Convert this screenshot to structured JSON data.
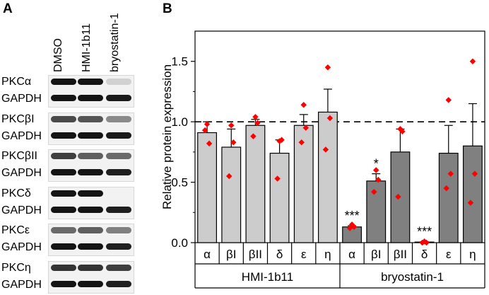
{
  "panel_a": {
    "letter": "A",
    "lanes": [
      "DMSO",
      "HMI-1b11",
      "bryostatin-1"
    ],
    "blots": [
      {
        "target": "PKCα",
        "control": "GAPDH",
        "target_intensity": [
          1.0,
          1.0,
          0.12
        ],
        "control_intensity": [
          1.0,
          1.0,
          0.97
        ]
      },
      {
        "target": "PKCβI",
        "control": "GAPDH",
        "target_intensity": [
          0.75,
          0.7,
          0.45
        ],
        "control_intensity": [
          1.0,
          1.0,
          0.97
        ]
      },
      {
        "target": "PKCβII",
        "control": "GAPDH",
        "target_intensity": [
          0.8,
          0.65,
          0.6
        ],
        "control_intensity": [
          1.0,
          1.0,
          0.95
        ]
      },
      {
        "target": "PKCδ",
        "control": "GAPDH",
        "target_intensity": [
          1.0,
          1.0,
          0.0
        ],
        "control_intensity": [
          1.0,
          1.0,
          0.95
        ]
      },
      {
        "target": "PKCε",
        "control": "GAPDH",
        "target_intensity": [
          0.6,
          0.65,
          0.5
        ],
        "control_intensity": [
          1.0,
          1.0,
          0.95
        ]
      },
      {
        "target": "PKCη",
        "control": "GAPDH",
        "target_intensity": [
          0.85,
          0.85,
          0.8
        ],
        "control_intensity": [
          1.0,
          1.0,
          0.95
        ]
      }
    ]
  },
  "chart_data": {
    "type": "bar",
    "panel_letter": "B",
    "ylabel": "Relative protein expression",
    "ylim": [
      0,
      1.75
    ],
    "yticks": [
      "0.0",
      "0.5",
      "1.0",
      "1.5"
    ],
    "reference_line": 1.0,
    "categories": [
      "α",
      "βI",
      "βII",
      "δ",
      "ε",
      "η",
      "α",
      "βI",
      "βII",
      "δ",
      "ε",
      "η"
    ],
    "groups": [
      {
        "name": "HMI-1b11",
        "start": 0,
        "end": 5,
        "color": "#cccccc"
      },
      {
        "name": "bryostatin-1",
        "start": 6,
        "end": 11,
        "color": "#808080"
      }
    ],
    "values": [
      0.91,
      0.79,
      0.97,
      0.74,
      0.97,
      1.08,
      0.13,
      0.51,
      0.75,
      0.005,
      0.74,
      0.8
    ],
    "errors": [
      0.09,
      0.15,
      0.05,
      0.11,
      0.09,
      0.19,
      0.01,
      0.06,
      0.19,
      0.003,
      0.23,
      0.35
    ],
    "points": [
      [
        0.98,
        0.82,
        0.93
      ],
      [
        0.97,
        0.83,
        0.55
      ],
      [
        1.04,
        0.99,
        0.88
      ],
      [
        0.84,
        0.85,
        0.53
      ],
      [
        1.14,
        0.95,
        0.83
      ],
      [
        1.45,
        1.03,
        0.77
      ],
      [
        0.15,
        0.13,
        0.12
      ],
      [
        0.6,
        0.52,
        0.42
      ],
      [
        0.94,
        0.92,
        0.38
      ],
      [
        0.01,
        0.0,
        0.0
      ],
      [
        1.18,
        0.57,
        0.45
      ],
      [
        1.5,
        0.57,
        0.33
      ]
    ],
    "annotations": [
      "***",
      "*",
      "",
      "***",
      "",
      ""
    ],
    "annotation_indices": [
      6,
      7,
      8,
      9,
      10,
      11
    ],
    "point_color": "#ff0000"
  }
}
